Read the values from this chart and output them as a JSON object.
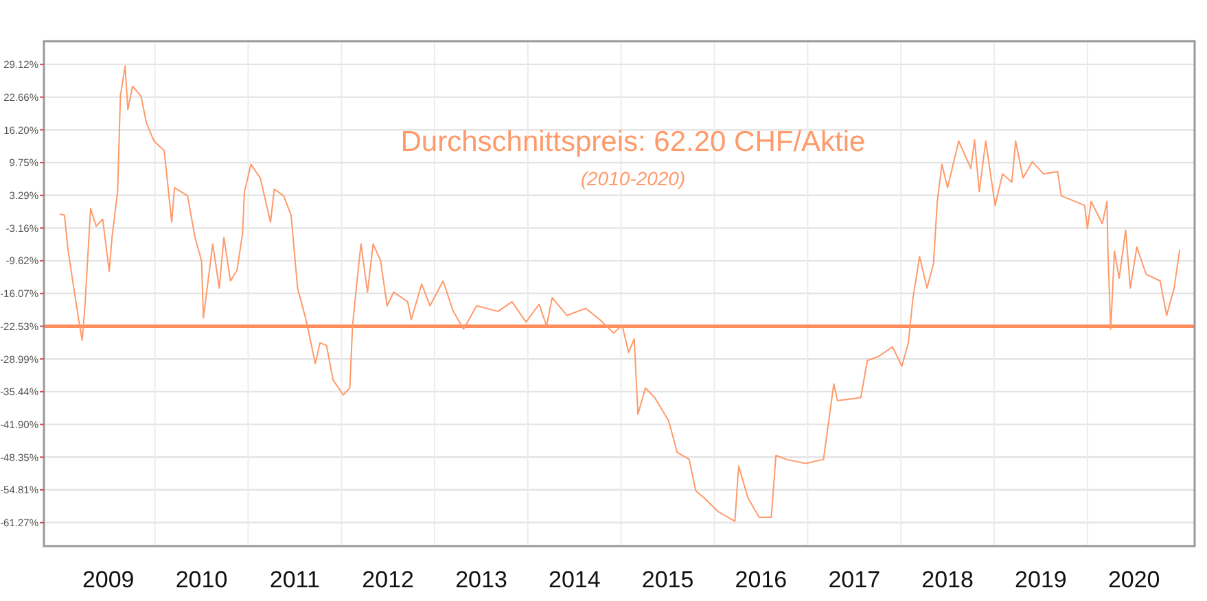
{
  "chart_data": {
    "type": "line",
    "title": "Durchschnittspreis: 62.20 CHF/Aktie",
    "subtitle": "(2010-2020)",
    "x": [
      2008.98,
      2009.03,
      2009.07,
      2009.13,
      2009.18,
      2009.22,
      2009.25,
      2009.31,
      2009.37,
      2009.44,
      2009.51,
      2009.54,
      2009.6,
      2009.63,
      2009.68,
      2009.71,
      2009.76,
      2009.85,
      2009.91,
      2009.99,
      2010.1,
      2010.18,
      2010.21,
      2010.35,
      2010.43,
      2010.5,
      2010.52,
      2010.62,
      2010.69,
      2010.74,
      2010.81,
      2010.88,
      2010.94,
      2010.96,
      2011.03,
      2011.13,
      2011.24,
      2011.28,
      2011.38,
      2011.46,
      2011.53,
      2011.62,
      2011.72,
      2011.77,
      2011.84,
      2011.91,
      2012.02,
      2012.09,
      2012.12,
      2012.17,
      2012.21,
      2012.28,
      2012.34,
      2012.42,
      2012.49,
      2012.56,
      2012.71,
      2012.75,
      2012.86,
      2012.95,
      2013.09,
      2013.2,
      2013.31,
      2013.45,
      2013.68,
      2013.83,
      2013.98,
      2014.12,
      2014.2,
      2014.26,
      2014.42,
      2014.62,
      2014.77,
      2014.92,
      2015.01,
      2015.08,
      2015.14,
      2015.18,
      2015.26,
      2015.36,
      2015.51,
      2015.6,
      2015.73,
      2015.8,
      2015.89,
      2016.04,
      2016.22,
      2016.26,
      2016.36,
      2016.48,
      2016.61,
      2016.66,
      2016.77,
      2016.98,
      2017.17,
      2017.28,
      2017.32,
      2017.57,
      2017.64,
      2017.76,
      2017.91,
      2018.01,
      2018.08,
      2018.13,
      2018.2,
      2018.28,
      2018.35,
      2018.39,
      2018.44,
      2018.5,
      2018.62,
      2018.75,
      2018.79,
      2018.84,
      2018.91,
      2019.01,
      2019.09,
      2019.19,
      2019.23,
      2019.31,
      2019.41,
      2019.53,
      2019.68,
      2019.72,
      2019.97,
      2020.0,
      2020.04,
      2020.16,
      2020.21,
      2020.22,
      2020.25,
      2020.29,
      2020.34,
      2020.41,
      2020.46,
      2020.53,
      2020.63,
      2020.78,
      2020.85,
      2020.93,
      2020.99
    ],
    "series": [
      {
        "color": "#ff9a6a",
        "values": [
          -0.4,
          -0.6,
          -7.7,
          -15.0,
          -20.9,
          -25.3,
          -18.5,
          0.7,
          -2.8,
          -1.4,
          -11.7,
          -5.0,
          4.0,
          22.9,
          28.8,
          20.2,
          24.8,
          22.9,
          17.5,
          14.0,
          12.1,
          -2.0,
          4.8,
          3.2,
          -5.0,
          -9.6,
          -20.9,
          -6.3,
          -15.0,
          -5.0,
          -13.6,
          -11.5,
          -4.2,
          4.0,
          9.4,
          6.7,
          -2.0,
          4.5,
          3.2,
          -0.6,
          -15.0,
          -21.2,
          -29.9,
          -25.8,
          -26.3,
          -33.1,
          -36.1,
          -34.7,
          -22.3,
          -13.1,
          -6.3,
          -15.8,
          -6.3,
          -9.6,
          -18.5,
          -15.8,
          -17.7,
          -21.2,
          -14.2,
          -18.5,
          -13.6,
          -19.6,
          -23.1,
          -18.5,
          -19.6,
          -17.7,
          -21.7,
          -18.2,
          -22.5,
          -16.9,
          -20.4,
          -19.0,
          -21.2,
          -23.9,
          -22.3,
          -27.7,
          -25.0,
          -39.9,
          -34.7,
          -36.6,
          -41.2,
          -47.4,
          -48.8,
          -55.0,
          -56.4,
          -59.1,
          -61.0,
          -50.1,
          -56.4,
          -60.2,
          -60.2,
          -48.0,
          -48.8,
          -49.6,
          -48.8,
          -33.9,
          -37.2,
          -36.6,
          -29.3,
          -28.5,
          -26.6,
          -30.4,
          -25.8,
          -16.9,
          -8.8,
          -15.0,
          -10.1,
          2.1,
          9.4,
          4.8,
          14.0,
          8.6,
          14.2,
          4.0,
          14.0,
          1.3,
          7.5,
          5.9,
          14.0,
          6.7,
          9.9,
          7.5,
          8.0,
          3.2,
          1.3,
          -3.3,
          2.1,
          -2.3,
          2.1,
          -7.7,
          -23.1,
          -7.7,
          -13.1,
          -3.6,
          -15.0,
          -6.9,
          -12.3,
          -13.6,
          -20.4,
          -15.0,
          -7.4
        ]
      }
    ],
    "xlim": [
      2008.81,
      2021.15
    ],
    "xticks": [
      {
        "value": 2009.5,
        "label": "2009"
      },
      {
        "value": 2010,
        "label": null
      },
      {
        "value": 2010.5,
        "label": "2010"
      },
      {
        "value": 2011,
        "label": null
      },
      {
        "value": 2011.5,
        "label": "2011"
      },
      {
        "value": 2012,
        "label": null
      },
      {
        "value": 2012.5,
        "label": "2012"
      },
      {
        "value": 2013,
        "label": null
      },
      {
        "value": 2013.5,
        "label": "2013"
      },
      {
        "value": 2014,
        "label": null
      },
      {
        "value": 2014.5,
        "label": "2014"
      },
      {
        "value": 2015,
        "label": null
      },
      {
        "value": 2015.5,
        "label": "2015"
      },
      {
        "value": 2016,
        "label": null
      },
      {
        "value": 2016.5,
        "label": "2016"
      },
      {
        "value": 2017,
        "label": null
      },
      {
        "value": 2017.5,
        "label": "2017"
      },
      {
        "value": 2018,
        "label": null
      },
      {
        "value": 2018.5,
        "label": "2018"
      },
      {
        "value": 2019,
        "label": null
      },
      {
        "value": 2019.5,
        "label": "2019"
      },
      {
        "value": 2020,
        "label": null
      },
      {
        "value": 2020.5,
        "label": "2020"
      }
    ],
    "ylim": [
      -65.9,
      33.7
    ],
    "yticks": [
      {
        "value": 29.12,
        "label": "29.12%"
      },
      {
        "value": 22.66,
        "label": "22.66%"
      },
      {
        "value": 16.2,
        "label": "16.20%"
      },
      {
        "value": 9.75,
        "label": "9.75%"
      },
      {
        "value": 3.29,
        "label": "3.29%"
      },
      {
        "value": -3.16,
        "label": "-3.16%"
      },
      {
        "value": -9.62,
        "label": "-9.62%"
      },
      {
        "value": -16.07,
        "label": "-16.07%"
      },
      {
        "value": -22.53,
        "label": "-22.53%"
      },
      {
        "value": -28.99,
        "label": "-28.99%"
      },
      {
        "value": -35.44,
        "label": "-35.44%"
      },
      {
        "value": -41.9,
        "label": "-41.90%"
      },
      {
        "value": -48.35,
        "label": "-48.35%"
      },
      {
        "value": -54.81,
        "label": "-54.81%"
      },
      {
        "value": -61.27,
        "label": "-61.27%"
      }
    ],
    "ref_lines": [
      {
        "axis": "y",
        "value": -22.53,
        "color": "#ff8c5a"
      }
    ],
    "grid": true
  }
}
